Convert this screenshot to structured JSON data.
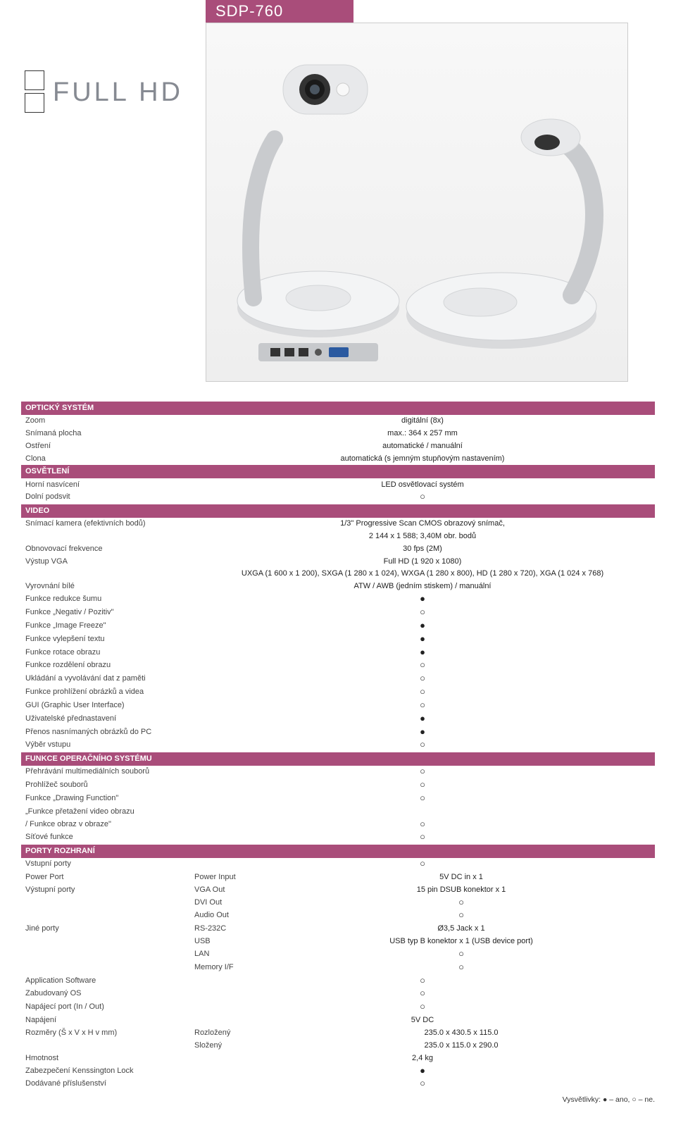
{
  "model": "SDP-760",
  "brand_text": "FULL HD",
  "colors": {
    "section_bg": "#a94d7a",
    "section_text": "#ffffff",
    "cyan": "#4fc3e8",
    "green": "#a4c639",
    "fullhd_text": "#868a92"
  },
  "symbols": {
    "yes": "●",
    "no": "○"
  },
  "sections": [
    {
      "title": "OPTICKÝ SYSTÉM",
      "rows": [
        {
          "label": "Zoom",
          "value": "digitální (8x)"
        },
        {
          "label": "Snímaná plocha",
          "value": "max.: 364 x 257 mm"
        },
        {
          "label": "Ostření",
          "value": "automatické / manuální"
        },
        {
          "label": "Clona",
          "value": "automatická (s jemným stupňovým nastavením)"
        }
      ]
    },
    {
      "title": "OSVĚTLENÍ",
      "rows": [
        {
          "label": "Horní nasvícení",
          "value": "LED osvětlovací systém"
        },
        {
          "label": "Dolní podsvit",
          "sym": "no"
        }
      ]
    },
    {
      "title": "VIDEO",
      "rows": [
        {
          "label": "Snímací kamera (efektivních bodů)",
          "value": "1/3\" Progressive Scan CMOS obrazový snímač,"
        },
        {
          "label": "",
          "value": "2 144 x 1 588; 3,40M obr. bodů"
        },
        {
          "label": "Obnovovací frekvence",
          "value": "30 fps (2M)"
        },
        {
          "label": "Výstup VGA",
          "value": "Full HD (1 920 x 1080)"
        },
        {
          "label": "",
          "value": "UXGA (1 600 x 1 200), SXGA (1 280 x 1 024), WXGA (1 280 x 800), HD (1 280 x 720), XGA (1 024 x 768)"
        },
        {
          "label": "Vyrovnání bílé",
          "value": "ATW / AWB (jedním stiskem) / manuální"
        },
        {
          "label": "Funkce redukce šumu",
          "sym": "yes"
        },
        {
          "label": "Funkce „Negativ / Pozitiv\"",
          "sym": "no"
        },
        {
          "label": "Funkce „Image Freeze\"",
          "sym": "yes"
        },
        {
          "label": "Funkce vylepšení textu",
          "sym": "yes"
        },
        {
          "label": "Funkce rotace obrazu",
          "sym": "yes"
        },
        {
          "label": "Funkce rozdělení obrazu",
          "sym": "no"
        },
        {
          "label": "Ukládání a vyvolávání dat z paměti",
          "sym": "no"
        },
        {
          "label": "Funkce prohlížení obrázků a videa",
          "sym": "no"
        },
        {
          "label": "GUI (Graphic User Interface)",
          "sym": "no"
        },
        {
          "label": "Uživatelské přednastavení",
          "sym": "yes"
        },
        {
          "label": "Přenos nasnímaných obrázků do PC",
          "sym": "yes"
        },
        {
          "label": "Výběr vstupu",
          "sym": "no"
        }
      ]
    },
    {
      "title": "FUNKCE OPERAČNÍHO SYSTÉMU",
      "rows": [
        {
          "label": "Přehrávání multimediálních souborů",
          "sym": "no"
        },
        {
          "label": "Prohlížeč souborů",
          "sym": "no"
        },
        {
          "label": "Funkce „Drawing Function\"",
          "sym": "no"
        },
        {
          "label": "„Funkce přetažení video obrazu",
          "value": ""
        },
        {
          "label": "/ Funkce obraz v obraze\"",
          "sym": "no"
        },
        {
          "label": "Síťové funkce",
          "sym": "no"
        }
      ]
    },
    {
      "title": "PORTY ROZHRANÍ",
      "rows": [
        {
          "label": "Vstupní porty",
          "sym": "no"
        },
        {
          "label": "Power Port",
          "sublabel": "Power Input",
          "value": "5V DC in x 1"
        },
        {
          "label": "Výstupní porty",
          "sublabel": "VGA Out",
          "value": "15 pin DSUB konektor x 1"
        },
        {
          "label": "",
          "sublabel": "DVI Out",
          "sym": "no"
        },
        {
          "label": "",
          "sublabel": "Audio Out",
          "sym": "no"
        },
        {
          "label": "Jiné porty",
          "sublabel": "RS-232C",
          "value": "Ø3,5 Jack x 1"
        },
        {
          "label": "",
          "sublabel": "USB",
          "value": "USB typ B konektor x 1 (USB device port)"
        },
        {
          "label": "",
          "sublabel": "LAN",
          "sym": "no"
        },
        {
          "label": "",
          "sublabel": "Memory I/F",
          "sym": "no"
        },
        {
          "label": "Application Software",
          "sym": "no"
        },
        {
          "label": "Zabudovaný OS",
          "sym": "no"
        },
        {
          "label": "Napájecí port (In / Out)",
          "sym": "no"
        },
        {
          "label": "Napájení",
          "value": "5V DC"
        },
        {
          "label": "Rozměry (Š x V x H v mm)",
          "sublabel": "Rozložený",
          "value": "235.0 x 430.5 x 115.0"
        },
        {
          "label": "",
          "sublabel": "Složený",
          "value": "235.0 x 115.0 x 290.0"
        },
        {
          "label": "Hmotnost",
          "value": "2,4 kg"
        },
        {
          "label": "Zabezpečení Kenssington Lock",
          "sym": "yes"
        },
        {
          "label": "Dodávané příslušenství",
          "sym": "no"
        }
      ]
    }
  ],
  "legend": "Vysvětlivky: ● – ano, ○ – ne."
}
